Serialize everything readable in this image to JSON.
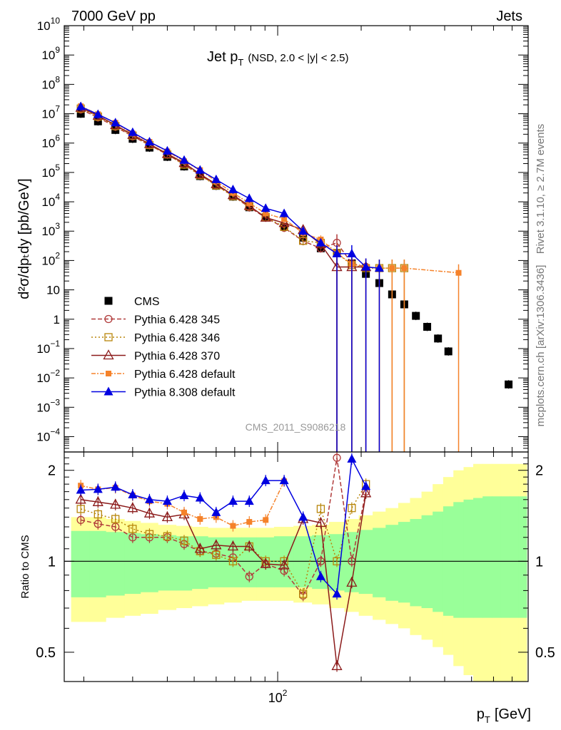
{
  "header": {
    "left": "7000 GeV pp",
    "right": "Jets",
    "side_top": "Rivet 3.1.10, ≥ 2.7M events",
    "side_bottom": "mcplots.cern.ch [arXiv:1306.3436]",
    "watermark": "CMS_2011_S9086218"
  },
  "chart_data": {
    "type": "scatter",
    "title_main": "Jet p",
    "title_sub": "T",
    "title_note": "(NSD, 2.0 < |y| < 2.5)",
    "xlabel_main": "p",
    "xlabel_sub": "T",
    "xlabel_unit": "[GeV]",
    "ylabel": "d²σ/dpₜdy [pb/GeV]",
    "ratio_ylabel": "Ratio to CMS",
    "xscale": "log",
    "xlim": [
      17,
      800
    ],
    "ylim": [
      3e-05,
      10000000000.0
    ],
    "ratio_ylim": [
      0.4,
      2.3
    ],
    "x_tick_label": "10²",
    "y_tick_labels": [
      {
        "v": 10000000000.0,
        "t": "10|10"
      },
      {
        "v": 1000000000.0,
        "t": "10|9"
      },
      {
        "v": 100000000.0,
        "t": "10|8"
      },
      {
        "v": 10000000.0,
        "t": "10|7"
      },
      {
        "v": 1000000.0,
        "t": "10|6"
      },
      {
        "v": 100000.0,
        "t": "10|5"
      },
      {
        "v": 10000.0,
        "t": "10|4"
      },
      {
        "v": 1000.0,
        "t": "10|3"
      },
      {
        "v": 100,
        "t": "10|2"
      },
      {
        "v": 10,
        "t": "10"
      },
      {
        "v": 1,
        "t": "1"
      },
      {
        "v": 0.1,
        "t": "10|−1"
      },
      {
        "v": 0.01,
        "t": "10|−2"
      },
      {
        "v": 0.001,
        "t": "10|−3"
      },
      {
        "v": 0.0001,
        "t": "10|−4"
      }
    ],
    "ratio_tick_labels": [
      {
        "v": 0.5,
        "t": "0.5"
      },
      {
        "v": 1,
        "t": "1"
      },
      {
        "v": 2,
        "t": "2"
      }
    ],
    "bin_edges": [
      18,
      21,
      24,
      28,
      32,
      37,
      43,
      49,
      56,
      64,
      74,
      84,
      97,
      114,
      133,
      153,
      174,
      196,
      220,
      245,
      272,
      300,
      330,
      362,
      395,
      430,
      468,
      507,
      548,
      592,
      638,
      686,
      737,
      790
    ],
    "band_green": [
      [
        0.76,
        1.26
      ],
      [
        0.76,
        1.26
      ],
      [
        0.77,
        1.25
      ],
      [
        0.78,
        1.24
      ],
      [
        0.79,
        1.23
      ],
      [
        0.8,
        1.22
      ],
      [
        0.8,
        1.21
      ],
      [
        0.81,
        1.21
      ],
      [
        0.82,
        1.2
      ],
      [
        0.82,
        1.2
      ],
      [
        0.82,
        1.2
      ],
      [
        0.82,
        1.2
      ],
      [
        0.82,
        1.21
      ],
      [
        0.82,
        1.21
      ],
      [
        0.81,
        1.22
      ],
      [
        0.8,
        1.23
      ],
      [
        0.79,
        1.25
      ],
      [
        0.78,
        1.27
      ],
      [
        0.76,
        1.29
      ],
      [
        0.74,
        1.32
      ],
      [
        0.73,
        1.35
      ],
      [
        0.71,
        1.38
      ],
      [
        0.7,
        1.42
      ],
      [
        0.68,
        1.46
      ],
      [
        0.66,
        1.52
      ],
      [
        0.65,
        1.57
      ],
      [
        0.65,
        1.6
      ],
      [
        0.65,
        1.62
      ],
      [
        0.65,
        1.64
      ],
      [
        0.65,
        1.64
      ],
      [
        0.65,
        1.64
      ],
      [
        0.65,
        1.64
      ],
      [
        0.65,
        1.64
      ]
    ],
    "band_yellow": [
      [
        0.63,
        1.4
      ],
      [
        0.63,
        1.4
      ],
      [
        0.65,
        1.38
      ],
      [
        0.66,
        1.36
      ],
      [
        0.67,
        1.34
      ],
      [
        0.69,
        1.32
      ],
      [
        0.7,
        1.31
      ],
      [
        0.71,
        1.3
      ],
      [
        0.72,
        1.29
      ],
      [
        0.73,
        1.29
      ],
      [
        0.74,
        1.29
      ],
      [
        0.74,
        1.29
      ],
      [
        0.74,
        1.3
      ],
      [
        0.73,
        1.31
      ],
      [
        0.72,
        1.32
      ],
      [
        0.7,
        1.35
      ],
      [
        0.68,
        1.38
      ],
      [
        0.66,
        1.42
      ],
      [
        0.64,
        1.46
      ],
      [
        0.62,
        1.5
      ],
      [
        0.6,
        1.56
      ],
      [
        0.57,
        1.62
      ],
      [
        0.55,
        1.7
      ],
      [
        0.52,
        1.8
      ],
      [
        0.49,
        1.9
      ],
      [
        0.45,
        2.0
      ],
      [
        0.42,
        2.05
      ],
      [
        0.4,
        2.1
      ],
      [
        0.4,
        2.1
      ],
      [
        0.4,
        2.1
      ],
      [
        0.4,
        2.1
      ],
      [
        0.4,
        2.1
      ],
      [
        0.4,
        2.1
      ]
    ],
    "series": [
      {
        "name": "CMS",
        "color": "#000000",
        "marker": "square-filled",
        "dash": "",
        "x": [
          19.5,
          22.5,
          26,
          30,
          34.5,
          40,
          46,
          52.5,
          60,
          69,
          79,
          90.5,
          105.5,
          123.5,
          143,
          163.5,
          185,
          208,
          232.5,
          258.5,
          286,
          315,
          346,
          378.5,
          412.5,
          449,
          680
        ],
        "y": [
          10000000.0,
          5500000.0,
          2800000.0,
          1400000.0,
          700000.0,
          340000.0,
          160000.0,
          75000.0,
          35000.0,
          15000.0,
          6500.0,
          3000.0,
          1400.0,
          600,
          260,
          180,
          80,
          35,
          17,
          7,
          3.2,
          1.3,
          0.55,
          0.22,
          0.08,
          0,
          0.006
        ]
      },
      {
        "name": "Pythia 6.428 345",
        "color": "#b03a3a",
        "marker": "circle-open",
        "dash": "6,3",
        "x": [
          19.5,
          22.5,
          26,
          30,
          34.5,
          40,
          46,
          52.5,
          60,
          69,
          79,
          90.5,
          105.5,
          123.5,
          143,
          163.5,
          185,
          208
        ],
        "y": [
          14000000.0,
          7500000.0,
          3600000.0,
          1700000.0,
          850000.0,
          410000.0,
          185000.0,
          82000.0,
          37000.0,
          16000.0,
          6500.0,
          2900.0,
          1300.0,
          460,
          260,
          400,
          80,
          60
        ],
        "ratio": [
          1.37,
          1.33,
          1.3,
          1.2,
          1.2,
          1.2,
          1.14,
          1.08,
          1.06,
          1.03,
          0.89,
          0.98,
          0.93,
          0.77,
          1.0,
          2.2,
          1.0,
          1.7
        ]
      },
      {
        "name": "Pythia 6.428 346",
        "color": "#b8860b",
        "marker": "square-open",
        "dash": "2,3",
        "x": [
          19.5,
          22.5,
          26,
          30,
          34.5,
          40,
          46,
          52.5,
          60,
          69,
          79,
          90.5,
          105.5,
          123.5,
          143,
          163.5,
          185,
          208,
          232.5,
          258.5,
          286
        ],
        "y": [
          15000000.0,
          8000000.0,
          3800000.0,
          1800000.0,
          860000.0,
          410000.0,
          185000.0,
          80000.0,
          36000.0,
          15500.0,
          7000.0,
          3000.0,
          1400.0,
          470,
          400,
          180,
          70,
          55,
          55,
          55,
          55
        ],
        "ratio": [
          1.49,
          1.43,
          1.38,
          1.28,
          1.23,
          1.21,
          1.17,
          1.08,
          1.05,
          1.0,
          1.12,
          1.0,
          1.0,
          0.78,
          1.49,
          1.0,
          1.5,
          1.8,
          0,
          0,
          0
        ]
      },
      {
        "name": "Pythia 6.428 370",
        "color": "#8b1a1a",
        "marker": "triangle-open",
        "dash": "",
        "x": [
          19.5,
          22.5,
          26,
          30,
          34.5,
          40,
          46,
          52.5,
          60,
          69,
          79,
          90.5,
          105.5,
          123.5,
          143,
          163.5,
          185,
          208
        ],
        "y": [
          16000000.0,
          8600000.0,
          4100000.0,
          1900000.0,
          930000.0,
          430000.0,
          210000.0,
          88000.0,
          40000.0,
          17000.0,
          7300.0,
          2900.0,
          1900.0,
          1100.0,
          360,
          60,
          60,
          60
        ],
        "ratio": [
          1.6,
          1.57,
          1.54,
          1.5,
          1.44,
          1.4,
          1.43,
          1.1,
          1.13,
          1.12,
          1.12,
          0.98,
          0.97,
          1.38,
          1.34,
          0.45,
          0.85,
          1.68
        ]
      },
      {
        "name": "Pythia 6.428 default",
        "color": "#f5822a",
        "marker": "square-filled-small",
        "dash": "6,2,2,2",
        "x": [
          19.5,
          22.5,
          26,
          30,
          34.5,
          40,
          46,
          52.5,
          60,
          69,
          79,
          90.5,
          105.5,
          123.5,
          143,
          163.5,
          185,
          208,
          232.5,
          258.5,
          286,
          449
        ],
        "y": [
          18000000.0,
          9600000.0,
          4900000.0,
          2100000.0,
          1100000.0,
          520000.0,
          240000.0,
          120000.0,
          50000.0,
          20000.0,
          9000.0,
          4000.0,
          2600.0,
          850,
          520,
          180,
          75,
          60,
          55,
          55,
          55,
          38
        ],
        "ratio": [
          1.78,
          1.73,
          1.75,
          1.65,
          1.58,
          1.55,
          1.45,
          1.38,
          1.4,
          1.31,
          1.35,
          1.37,
          1.84,
          0,
          0,
          0,
          0,
          0,
          0,
          0,
          0,
          0
        ]
      },
      {
        "name": "Pythia 8.308 default",
        "color": "#0000e0",
        "marker": "triangle-filled",
        "dash": "",
        "x": [
          19.5,
          22.5,
          26,
          30,
          34.5,
          40,
          46,
          52.5,
          60,
          69,
          79,
          90.5,
          105.5,
          123.5,
          143,
          163.5,
          185,
          208,
          232.5
        ],
        "y": [
          17500000.0,
          9500000.0,
          4900000.0,
          2300000.0,
          1100000.0,
          540000.0,
          260000.0,
          120000.0,
          57000.0,
          26000.0,
          13000.0,
          6000.0,
          4000.0,
          1000.0,
          400,
          170,
          170,
          60,
          55
        ],
        "ratio": [
          1.72,
          1.73,
          1.76,
          1.66,
          1.6,
          1.58,
          1.65,
          1.62,
          1.45,
          1.58,
          1.58,
          1.85,
          1.85,
          1.4,
          0.89,
          0.78,
          2.18,
          1.77,
          0
        ]
      }
    ]
  }
}
